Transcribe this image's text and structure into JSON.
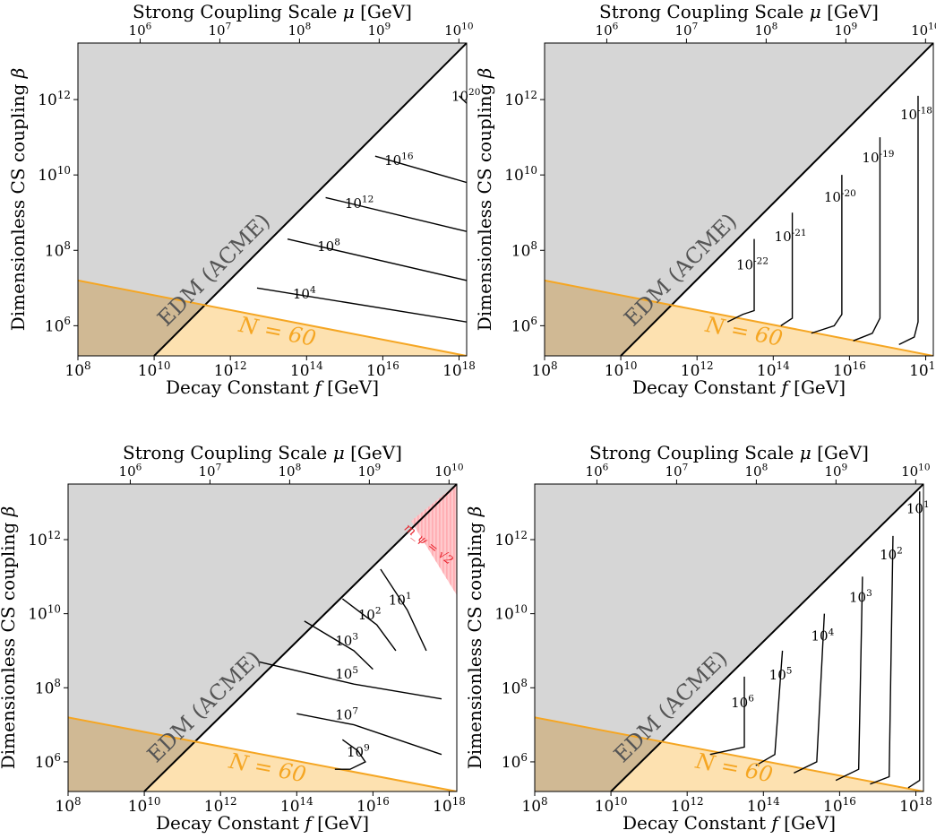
{
  "colors": {
    "edm_region": "#d6d6d6",
    "n60_region": "#fde1b0",
    "overlap_region": "#d0b994",
    "orange_line": "#f5a623",
    "red_region": "#ffc9cc",
    "red_hatch": "#ff8c95",
    "red_text": "#e8202a",
    "edm_text": "#555555",
    "n60_text": "#f5a623",
    "contour": "#000000"
  },
  "chart_data": [
    {
      "type": "contour",
      "panel": "top-left",
      "xlabel": "Decay Constant f [GeV]",
      "ylabel": "Dimensionless CS coupling β",
      "toplabel": "Strong Coupling Scale μ [GeV]",
      "xlim_log10": [
        8,
        18.2
      ],
      "ylim_log10": [
        5.2,
        13.5
      ],
      "x_ticks_log10": [
        8,
        10,
        12,
        14,
        16,
        18
      ],
      "y_ticks_log10": [
        6,
        8,
        10,
        12
      ],
      "top_ticks_log10": [
        6,
        7,
        8,
        9,
        10
      ],
      "region_labels": {
        "edm": "EDM (ACME)",
        "n60": "N = 60"
      },
      "contours": [
        {
          "label_exp": "4",
          "points": [
            [
              12.7,
              7.0
            ],
            [
              18.2,
              6.1
            ]
          ]
        },
        {
          "label_exp": "8",
          "points": [
            [
              13.5,
              8.3
            ],
            [
              18.2,
              7.2
            ]
          ]
        },
        {
          "label_exp": "12",
          "points": [
            [
              14.5,
              9.4
            ],
            [
              18.2,
              8.5
            ]
          ]
        },
        {
          "label_exp": "16",
          "points": [
            [
              15.8,
              10.5
            ],
            [
              18.2,
              9.8
            ]
          ]
        },
        {
          "label_exp": "20",
          "points": [
            [
              18.0,
              12.1
            ],
            [
              18.2,
              11.9
            ]
          ]
        }
      ]
    },
    {
      "type": "contour",
      "panel": "top-right",
      "xlabel": "Decay Constant f [GeV]",
      "ylabel": "Dimensionless CS coupling β",
      "toplabel": "Strong Coupling Scale μ [GeV]",
      "xlim_log10": [
        8,
        18.2
      ],
      "ylim_log10": [
        5.2,
        13.5
      ],
      "x_ticks_log10": [
        8,
        10,
        12,
        14,
        16,
        18
      ],
      "y_ticks_log10": [
        6,
        8,
        10,
        12
      ],
      "top_ticks_log10": [
        6,
        7,
        8,
        9,
        10
      ],
      "region_labels": {
        "edm": "EDM (ACME)",
        "n60": "N = 60"
      },
      "contours": [
        {
          "label_exp": "-22",
          "points": [
            [
              12.8,
              6.1
            ],
            [
              13.2,
              6.3
            ],
            [
              13.5,
              6.4
            ],
            [
              13.5,
              8.3
            ]
          ]
        },
        {
          "label_exp": "-21",
          "points": [
            [
              14.2,
              6.0
            ],
            [
              14.5,
              6.2
            ],
            [
              14.5,
              9.0
            ]
          ]
        },
        {
          "label_exp": "-20",
          "points": [
            [
              15.0,
              5.8
            ],
            [
              15.6,
              6.0
            ],
            [
              15.8,
              6.3
            ],
            [
              15.8,
              10.0
            ]
          ]
        },
        {
          "label_exp": "-19",
          "points": [
            [
              16.1,
              5.6
            ],
            [
              16.6,
              5.8
            ],
            [
              16.8,
              6.2
            ],
            [
              16.8,
              11.0
            ]
          ]
        },
        {
          "label_exp": "-18",
          "points": [
            [
              17.3,
              5.5
            ],
            [
              17.7,
              5.7
            ],
            [
              17.8,
              6.1
            ],
            [
              17.8,
              12.1
            ]
          ]
        }
      ]
    },
    {
      "type": "contour",
      "panel": "bottom-left",
      "xlabel": "Decay Constant f [GeV]",
      "ylabel": "Dimensionless CS coupling β",
      "toplabel": "Strong Coupling Scale μ [GeV]",
      "xlim_log10": [
        8,
        18.2
      ],
      "ylim_log10": [
        5.2,
        13.5
      ],
      "x_ticks_log10": [
        8,
        10,
        12,
        14,
        16,
        18
      ],
      "y_ticks_log10": [
        6,
        8,
        10,
        12
      ],
      "top_ticks_log10": [
        6,
        7,
        8,
        9,
        10
      ],
      "region_labels": {
        "edm": "EDM (ACME)",
        "n60": "N = 60",
        "red": "m_ψ = √2"
      },
      "red_region": [
        [
          17.0,
          12.5
        ],
        [
          18.2,
          13.5
        ],
        [
          18.2,
          10.5
        ]
      ],
      "contours": [
        {
          "label_exp": "9",
          "points": [
            [
              15.2,
              6.6
            ],
            [
              15.6,
              6.3
            ],
            [
              15.8,
              6.0
            ],
            [
              15.4,
              5.8
            ],
            [
              15.0,
              5.8
            ]
          ]
        },
        {
          "label_exp": "7",
          "points": [
            [
              14.0,
              7.3
            ],
            [
              15.5,
              7.0
            ],
            [
              17.8,
              6.2
            ]
          ]
        },
        {
          "label_exp": "5",
          "points": [
            [
              13.0,
              8.7
            ],
            [
              15.5,
              8.1
            ],
            [
              17.8,
              7.7
            ]
          ]
        },
        {
          "label_exp": "3",
          "points": [
            [
              14.2,
              9.8
            ],
            [
              15.5,
              9.0
            ],
            [
              16.0,
              8.5
            ]
          ]
        },
        {
          "label_exp": "2",
          "points": [
            [
              15.2,
              10.4
            ],
            [
              16.1,
              9.7
            ],
            [
              16.6,
              9.0
            ]
          ]
        },
        {
          "label_exp": "1",
          "points": [
            [
              16.2,
              11.2
            ],
            [
              16.9,
              10.1
            ],
            [
              17.4,
              9.0
            ]
          ]
        }
      ]
    },
    {
      "type": "contour",
      "panel": "bottom-right",
      "xlabel": "Decay Constant f [GeV]",
      "ylabel": "Dimensionless CS coupling β",
      "toplabel": "Strong Coupling Scale μ [GeV]",
      "xlim_log10": [
        8,
        18.2
      ],
      "ylim_log10": [
        5.2,
        13.5
      ],
      "x_ticks_log10": [
        8,
        10,
        12,
        14,
        16,
        18
      ],
      "y_ticks_log10": [
        6,
        8,
        10,
        12
      ],
      "top_ticks_log10": [
        6,
        7,
        8,
        9,
        10
      ],
      "region_labels": {
        "edm": "EDM (ACME)",
        "n60": "N = 60"
      },
      "contours": [
        {
          "label_exp": "6",
          "points": [
            [
              12.6,
              6.2
            ],
            [
              13.5,
              6.4
            ],
            [
              13.5,
              8.3
            ]
          ]
        },
        {
          "label_exp": "5",
          "points": [
            [
              13.8,
              5.9
            ],
            [
              14.3,
              6.2
            ],
            [
              14.5,
              9.0
            ]
          ]
        },
        {
          "label_exp": "4",
          "points": [
            [
              14.8,
              5.7
            ],
            [
              15.4,
              6.0
            ],
            [
              15.6,
              10.0
            ]
          ]
        },
        {
          "label_exp": "3",
          "points": [
            [
              15.9,
              5.5
            ],
            [
              16.5,
              5.8
            ],
            [
              16.6,
              11.0
            ]
          ]
        },
        {
          "label_exp": "2",
          "points": [
            [
              16.8,
              5.4
            ],
            [
              17.3,
              5.6
            ],
            [
              17.4,
              12.1
            ]
          ]
        },
        {
          "label_exp": "1",
          "points": [
            [
              17.8,
              5.3
            ],
            [
              18.1,
              5.5
            ],
            [
              18.1,
              13.3
            ]
          ]
        }
      ]
    }
  ]
}
